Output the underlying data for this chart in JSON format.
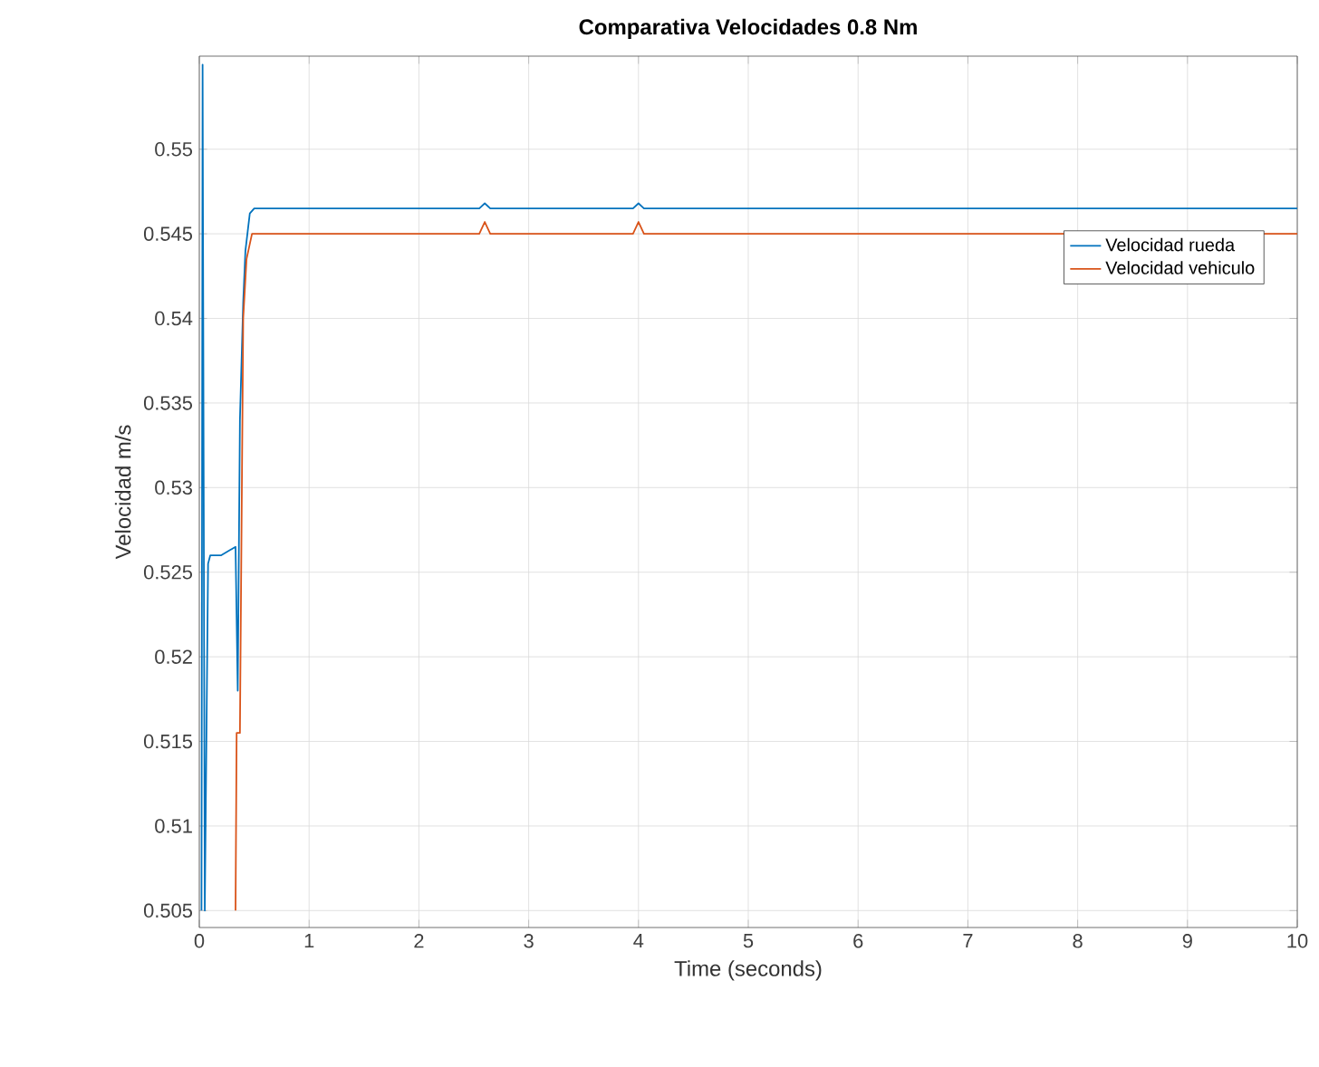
{
  "chart_data": {
    "type": "line",
    "title": "Comparativa Velocidades 0.8 Nm",
    "xlabel": "Time (seconds)",
    "ylabel": "Velocidad m/s",
    "xlim": [
      0,
      10
    ],
    "ylim": [
      0.504,
      0.5555
    ],
    "xticks": [
      0,
      1,
      2,
      3,
      4,
      5,
      6,
      7,
      8,
      9,
      10
    ],
    "yticks": [
      0.505,
      0.51,
      0.515,
      0.52,
      0.525,
      0.53,
      0.535,
      0.54,
      0.545,
      0.55
    ],
    "grid": true,
    "legend": "top right",
    "marker": "none",
    "line_style": "solid",
    "series": [
      {
        "name": "Velocidad rueda",
        "color": "#0072bd",
        "x": [
          0.02,
          0.03,
          0.05,
          0.08,
          0.1,
          0.2,
          0.33,
          0.35,
          0.37,
          0.4,
          0.42,
          0.46,
          0.5,
          2.55,
          2.6,
          2.65,
          3.95,
          4.0,
          4.05,
          10
        ],
        "values": [
          0.505,
          0.555,
          0.505,
          0.5255,
          0.526,
          0.526,
          0.5265,
          0.518,
          0.534,
          0.541,
          0.544,
          0.5462,
          0.5465,
          0.5465,
          0.5468,
          0.5465,
          0.5465,
          0.5468,
          0.5465,
          0.5465
        ]
      },
      {
        "name": "Velocidad vehiculo",
        "color": "#d95319",
        "x": [
          0.33,
          0.34,
          0.37,
          0.4,
          0.43,
          0.48,
          2.55,
          2.6,
          2.65,
          3.95,
          4.0,
          4.05,
          10
        ],
        "values": [
          0.505,
          0.5155,
          0.5155,
          0.54,
          0.5435,
          0.545,
          0.545,
          0.5457,
          0.545,
          0.545,
          0.5457,
          0.545,
          0.545
        ]
      }
    ]
  }
}
